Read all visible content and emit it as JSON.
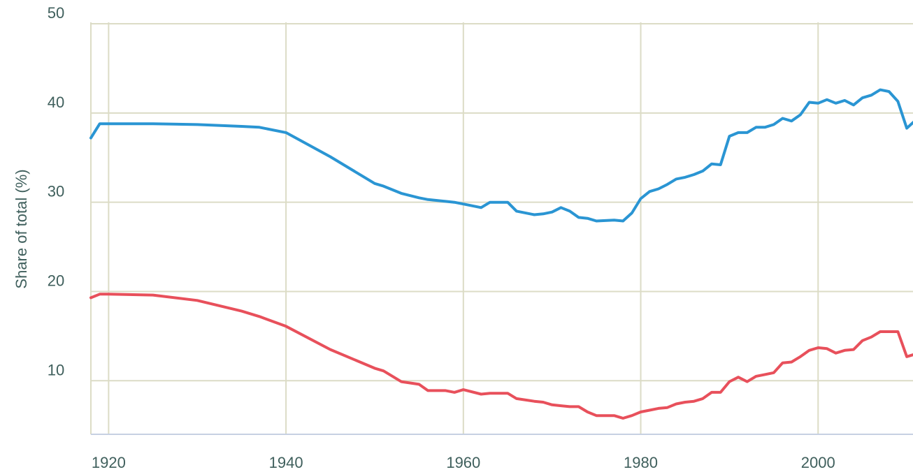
{
  "chart_data": {
    "type": "line",
    "y_label": "Share of total (%)",
    "x": [
      1918,
      1919,
      1920,
      1925,
      1930,
      1935,
      1937,
      1940,
      1945,
      1950,
      1951,
      1953,
      1955,
      1956,
      1958,
      1959,
      1960,
      1962,
      1963,
      1965,
      1966,
      1968,
      1969,
      1970,
      1971,
      1972,
      1973,
      1974,
      1975,
      1977,
      1978,
      1979,
      1980,
      1981,
      1982,
      1983,
      1984,
      1985,
      1986,
      1987,
      1988,
      1989,
      1990,
      1991,
      1992,
      1993,
      1994,
      1995,
      1996,
      1997,
      1998,
      1999,
      2000,
      2001,
      2002,
      2003,
      2004,
      2005,
      2006,
      2007,
      2008,
      2009,
      2010,
      2011
    ],
    "series": [
      {
        "color": "#2a95d3",
        "values": [
          37.2,
          38.8,
          38.8,
          38.8,
          38.7,
          38.5,
          38.4,
          37.8,
          35.1,
          32.1,
          31.8,
          31.0,
          30.5,
          30.3,
          30.1,
          30.0,
          29.8,
          29.4,
          30.0,
          30.0,
          29.0,
          28.6,
          28.7,
          28.9,
          29.4,
          29.0,
          28.3,
          28.2,
          27.9,
          28.0,
          27.9,
          28.8,
          30.4,
          31.2,
          31.5,
          32.0,
          32.6,
          32.8,
          33.1,
          33.5,
          34.3,
          34.2,
          37.4,
          37.8,
          37.8,
          38.4,
          38.4,
          38.7,
          39.4,
          39.1,
          39.8,
          41.2,
          41.1,
          41.5,
          41.1,
          41.4,
          40.9,
          41.7,
          42.0,
          42.6,
          42.4,
          41.3,
          38.3,
          39.2
        ]
      },
      {
        "color": "#e8505b",
        "values": [
          19.3,
          19.7,
          19.7,
          19.6,
          19.0,
          17.8,
          17.2,
          16.1,
          13.5,
          11.4,
          11.1,
          9.9,
          9.6,
          8.9,
          8.9,
          8.7,
          9.0,
          8.5,
          8.6,
          8.6,
          8.0,
          7.7,
          7.6,
          7.3,
          7.2,
          7.1,
          7.1,
          6.5,
          6.1,
          6.1,
          5.8,
          6.1,
          6.5,
          6.7,
          6.9,
          7.0,
          7.4,
          7.6,
          7.7,
          8.0,
          8.7,
          8.7,
          9.9,
          10.4,
          9.9,
          10.5,
          10.7,
          10.9,
          12.0,
          12.1,
          12.7,
          13.4,
          13.7,
          13.6,
          13.1,
          13.4,
          13.5,
          14.5,
          14.9,
          15.5,
          15.5,
          15.5,
          12.7,
          13.0
        ]
      }
    ],
    "xlim": [
      1918,
      2010.7
    ],
    "xticks": [
      1920,
      1940,
      1960,
      1980,
      2000
    ],
    "ylim": [
      4,
      50
    ],
    "yticks": [
      10,
      20,
      30,
      40,
      50
    ],
    "grid": true
  }
}
